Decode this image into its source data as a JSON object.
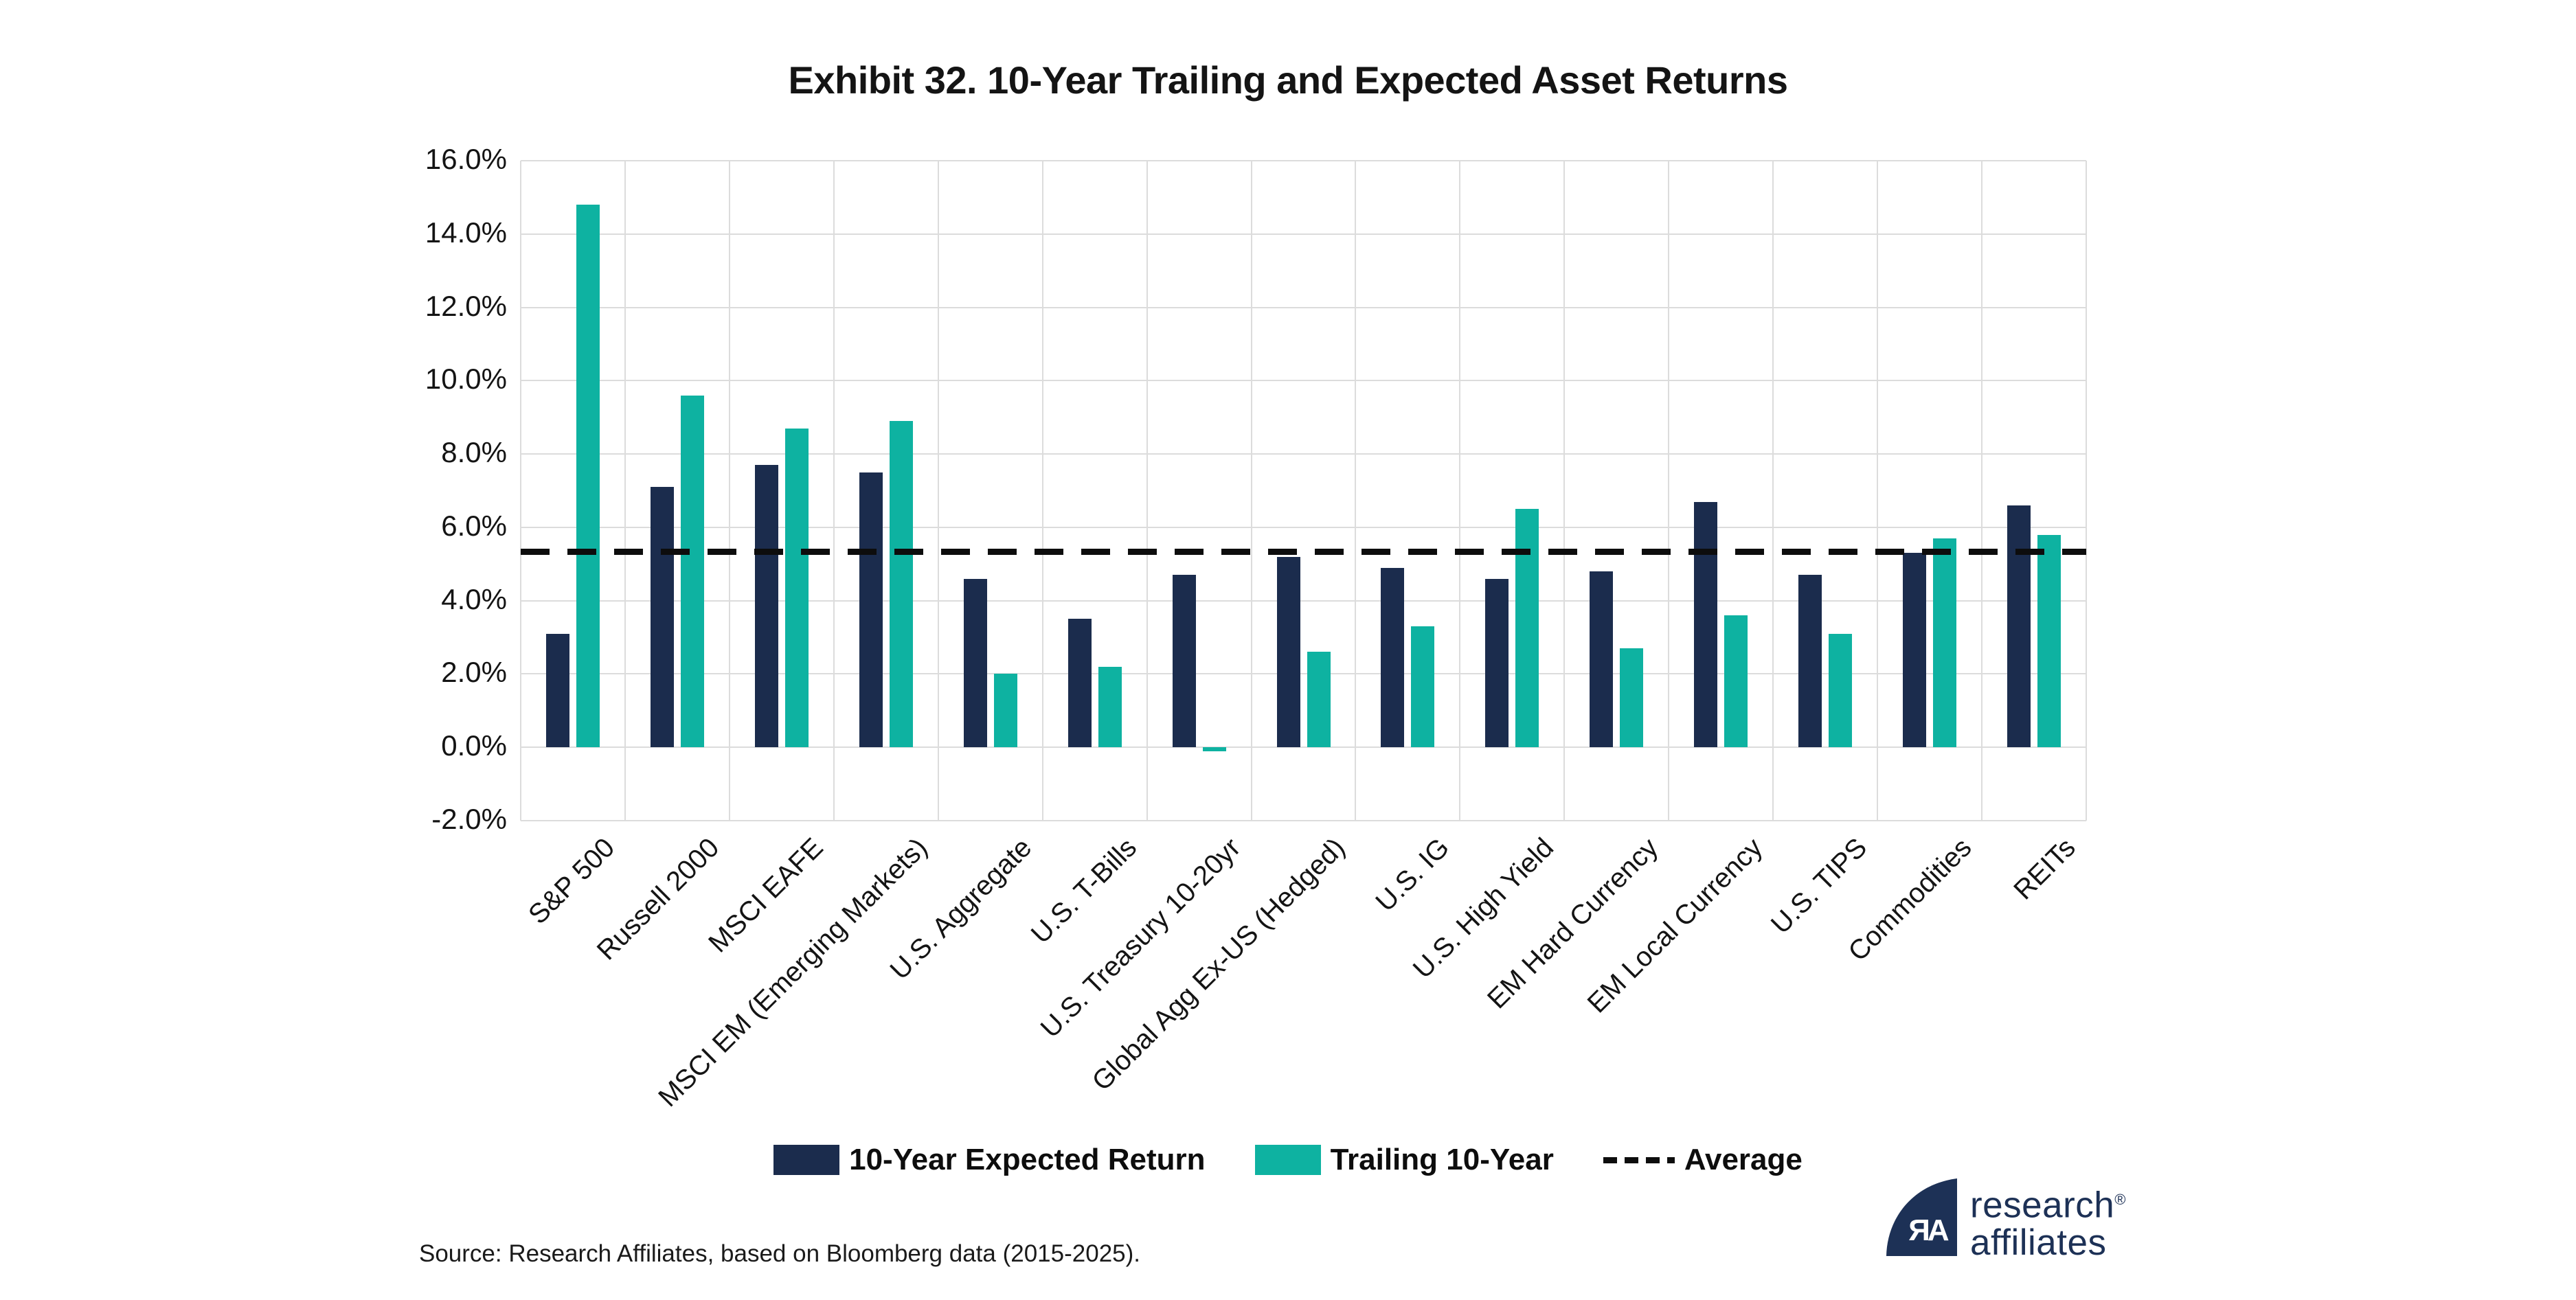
{
  "page": {
    "background": "#ffffff"
  },
  "chart_data": {
    "type": "bar",
    "title": "Exhibit 32. 10-Year Trailing and Expected Asset Returns",
    "categories": [
      "S&P 500",
      "Russell 2000",
      "MSCI EAFE",
      "MSCI EM (Emerging Markets)",
      "U.S. Aggregate",
      "U.S. T-Bills",
      "U.S. Treasury 10-20yr",
      "Global Agg Ex-US (Hedged)",
      "U.S. IG",
      "U.S. High Yield",
      "EM Hard Currency",
      "EM Local Currency",
      "U.S. TIPS",
      "Commodities",
      "REITs"
    ],
    "series": [
      {
        "name": "10-Year Expected Return",
        "color": "#1b2c4d",
        "values": [
          3.1,
          7.1,
          7.7,
          7.5,
          4.6,
          3.5,
          4.7,
          5.2,
          4.9,
          4.6,
          4.8,
          6.7,
          4.7,
          5.3,
          6.6
        ]
      },
      {
        "name": "Trailing 10-Year",
        "color": "#0eb2a1",
        "values": [
          14.8,
          9.6,
          8.7,
          8.9,
          2.0,
          2.2,
          -0.1,
          2.6,
          3.3,
          6.5,
          2.7,
          3.6,
          3.1,
          5.7,
          5.8
        ]
      }
    ],
    "average_line": {
      "label": "Average",
      "value": 5.35,
      "style": "dashed",
      "color": "#0d0d0d"
    },
    "ylim": [
      -2,
      16
    ],
    "ytick_step": 2,
    "ytick_labels": [
      "16.0%",
      "14.0%",
      "12.0%",
      "10.0%",
      "8.0%",
      "6.0%",
      "4.0%",
      "2.0%",
      "0.0%",
      "-2.0%"
    ],
    "grid": {
      "horizontal": true,
      "vertical": true,
      "color": "#dcdcdc"
    },
    "legend_position": "bottom"
  },
  "footer": {
    "source": "Source: Research Affiliates, based on Bloomberg data (2015-2025).",
    "logo": {
      "monogram": "ЯA",
      "name_line1": "research",
      "name_line2": "affiliates",
      "registered_mark": "®"
    }
  }
}
